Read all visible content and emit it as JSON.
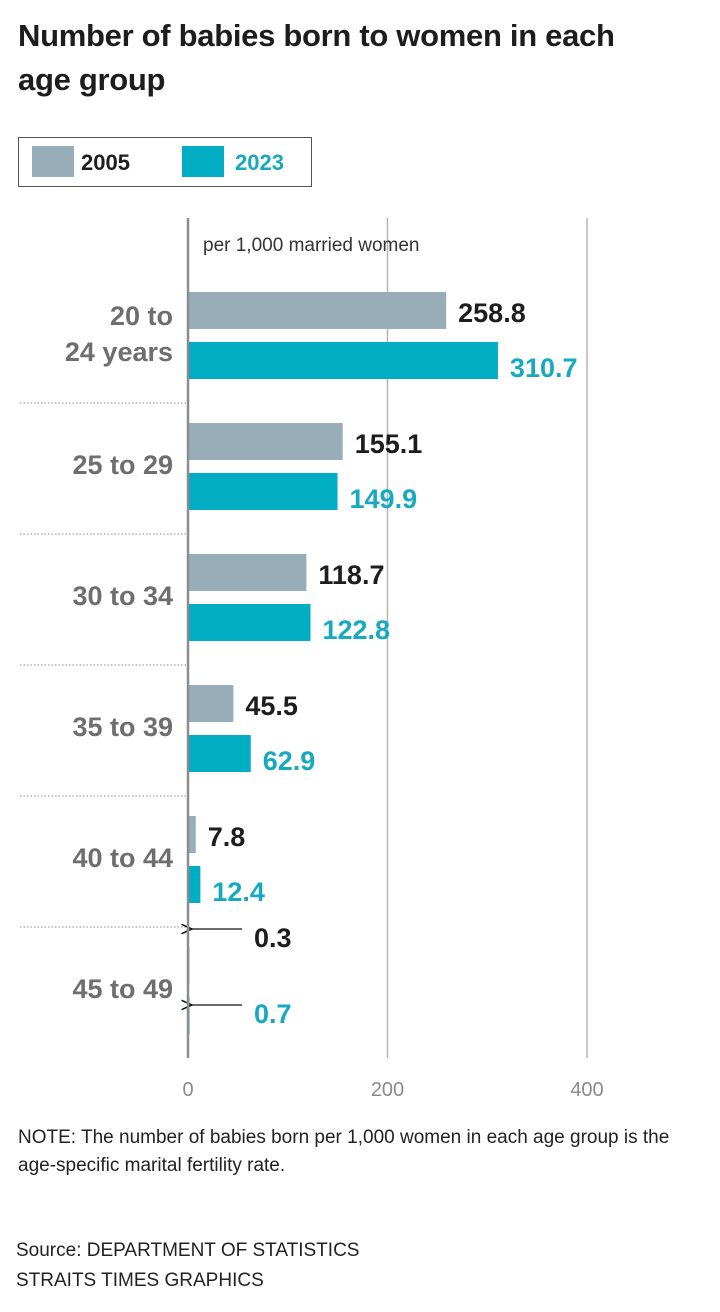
{
  "chart_data": {
    "type": "bar",
    "orientation": "horizontal",
    "title": "Number of babies born to women in each age group",
    "unit_label": "per 1,000 married women",
    "categories": [
      "20 to\n24 years",
      "25 to 29",
      "30 to 34",
      "35 to 39",
      "40 to 44",
      "45 to 49"
    ],
    "series": [
      {
        "name": "2005",
        "color": "#97aeb9",
        "label_color": "#1d1d1d",
        "values": [
          258.8,
          155.1,
          118.7,
          45.5,
          7.8,
          0.3
        ],
        "labels": [
          "258.8",
          "155.1",
          "118.7",
          "45.5",
          "7.8",
          "0.3"
        ]
      },
      {
        "name": "2023",
        "color": "#00adc2",
        "label_color": "#16a9bf",
        "values": [
          310.7,
          149.9,
          122.8,
          62.9,
          12.4,
          0.7
        ],
        "labels": [
          "310.7",
          "149.9",
          "122.8",
          "62.9",
          "12.4",
          "0.7"
        ]
      }
    ],
    "xlim": [
      0,
      400
    ],
    "xticks": [
      "0",
      "200",
      "400"
    ],
    "grid": true,
    "legend_position": "top-left",
    "arrow_annotations_for": [
      "45 to 49"
    ]
  },
  "note": "NOTE: The number of babies born per 1,000 women in each age group is the age-specific marital fertility rate.",
  "source": "Source: DEPARTMENT OF STATISTICS",
  "credit": "STRAITS TIMES GRAPHICS"
}
